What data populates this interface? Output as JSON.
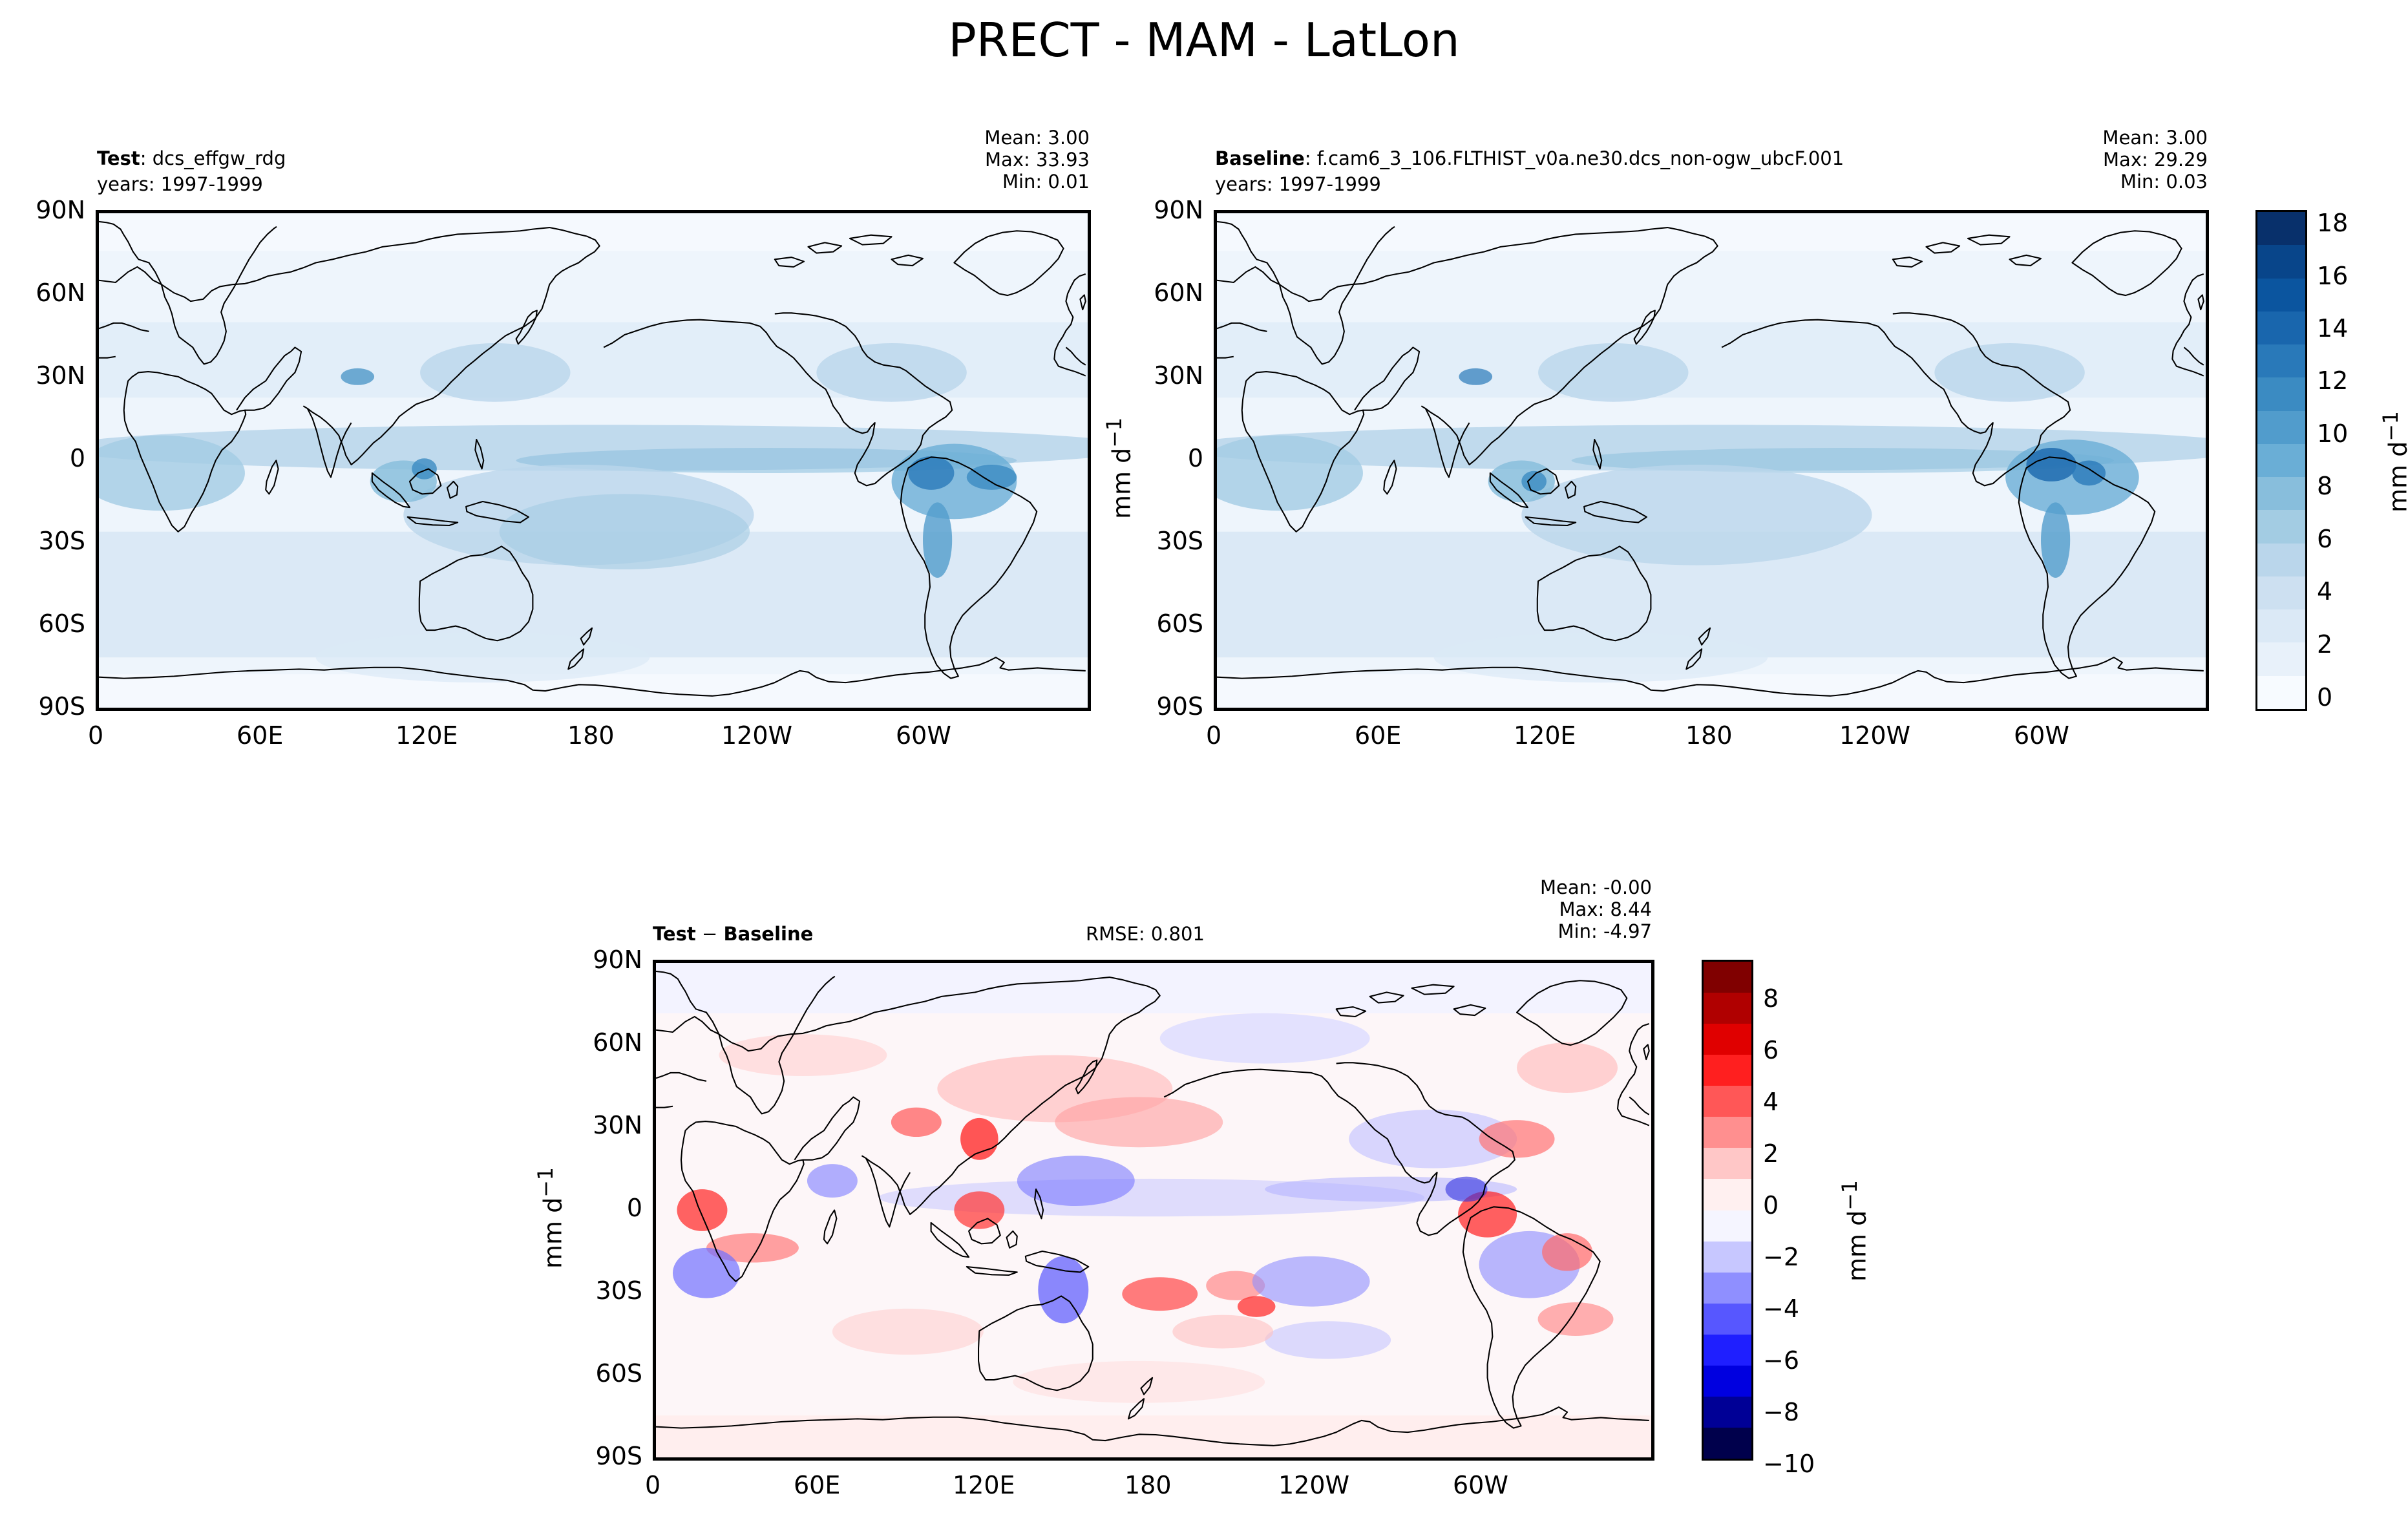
{
  "figure": {
    "title": "PRECT - MAM - LatLon"
  },
  "colors": {
    "precip_scale": [
      "#f7fbff",
      "#e8f1fa",
      "#dbe9f6",
      "#cde0f1",
      "#bad6eb",
      "#a3cce3",
      "#88bedc",
      "#6aaed6",
      "#519ccc",
      "#3b8bc2",
      "#2979b9",
      "#1966ad",
      "#0b559f",
      "#08458a",
      "#08306b"
    ],
    "diff_scale": [
      "#00004c",
      "#000096",
      "#0000e0",
      "#1f1fff",
      "#5757ff",
      "#8f8fff",
      "#c7c7ff",
      "#f5f5ff",
      "#fff0f0",
      "#ffc7c7",
      "#ff8f8f",
      "#ff5757",
      "#ff1f1f",
      "#e00000",
      "#b00000",
      "#800000"
    ],
    "coastline": "#000000"
  },
  "panels": {
    "test": {
      "name_bold": "Test",
      "name_rest": ": dcs_effgw_rdg",
      "years": "years: 1997-1999",
      "stats": [
        "Mean:  3.00",
        "Max: 33.93",
        "Min:  0.01"
      ]
    },
    "baseline": {
      "name_bold": "Baseline",
      "name_rest": ": f.cam6_3_106.FLTHIST_v0a.ne30.dcs_non-ogw_ubcF.001",
      "years": "years: 1997-1999",
      "stats": [
        "Mean:  3.00",
        "Max: 29.29",
        "Min:  0.03"
      ]
    },
    "diff": {
      "name_a": "Test",
      "name_sep": " − ",
      "name_b": "Baseline",
      "rmse": "RMSE: 0.801",
      "stats": [
        "Mean: -0.00",
        "Max:  8.44",
        "Min: -4.97"
      ]
    }
  },
  "axes": {
    "lat_ticks": [
      "90N",
      "60N",
      "30N",
      "0",
      "30S",
      "60S",
      "90S"
    ],
    "lon_ticks": [
      "0",
      "60E",
      "120E",
      "180",
      "120W",
      "60W"
    ],
    "units_label": "mm d",
    "units_exp": "−1"
  },
  "colorbars": {
    "precip": {
      "ticks": [
        "18",
        "16",
        "14",
        "12",
        "10",
        "8",
        "6",
        "4",
        "2",
        "0"
      ],
      "range": [
        0,
        19
      ]
    },
    "diff": {
      "ticks": [
        "8",
        "6",
        "4",
        "2",
        "0",
        "−2",
        "−4",
        "−6",
        "−8",
        "−10"
      ],
      "range": [
        -10,
        9.5
      ]
    }
  }
}
